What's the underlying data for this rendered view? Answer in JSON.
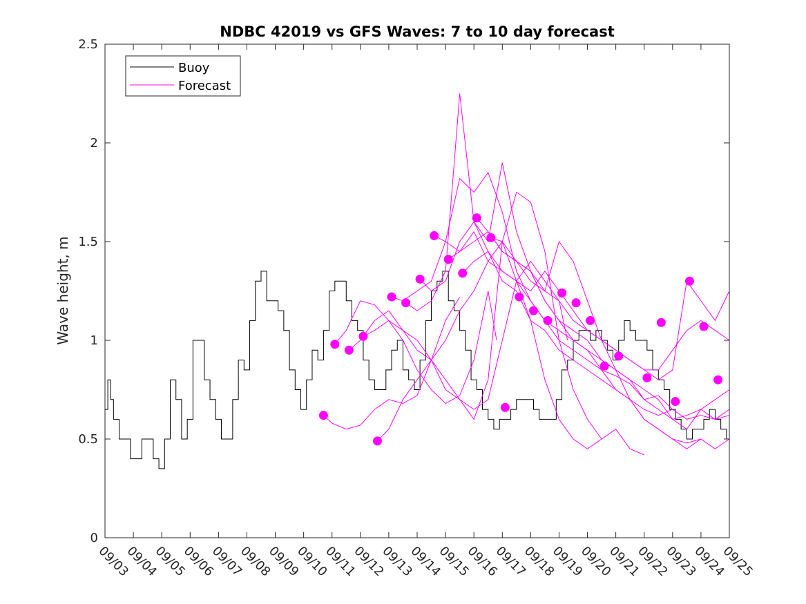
{
  "chart_data": {
    "type": "line",
    "title": "NDBC 42019 vs GFS Waves: 7 to 10 day forecast",
    "xlabel": "",
    "ylabel": "Wave height, m",
    "ylim": [
      0,
      2.5
    ],
    "yticks": [
      0,
      0.5,
      1,
      1.5,
      2,
      2.5
    ],
    "ytick_labels": [
      "0",
      "0.5",
      "1",
      "1.5",
      "2",
      "2.5"
    ],
    "xlim": [
      0,
      22
    ],
    "xticks": [
      0,
      1,
      2,
      3,
      4,
      5,
      6,
      7,
      8,
      9,
      10,
      11,
      12,
      13,
      14,
      15,
      16,
      17,
      18,
      19,
      20,
      21,
      22
    ],
    "xtick_labels": [
      "09/03",
      "09/04",
      "09/05",
      "09/06",
      "09/07",
      "09/08",
      "09/09",
      "09/10",
      "09/11",
      "09/12",
      "09/13",
      "09/14",
      "09/15",
      "09/16",
      "09/17",
      "09/18",
      "09/19",
      "09/20",
      "09/21",
      "09/22",
      "09/23",
      "09/24",
      "09/25"
    ],
    "x_unit": "days since 09/03",
    "legend": {
      "position": "top-left",
      "entries": [
        {
          "label": "Buoy",
          "color": "#000000"
        },
        {
          "label": "Forecast",
          "color": "#ff00ff"
        }
      ]
    },
    "colors": {
      "buoy": "#000000",
      "forecast": "#ff00ff"
    },
    "buoy": {
      "name": "Buoy",
      "x": [
        0,
        0.1,
        0.2,
        0.3,
        0.5,
        0.7,
        0.9,
        1.1,
        1.3,
        1.5,
        1.7,
        1.9,
        2.1,
        2.3,
        2.5,
        2.7,
        2.9,
        3.1,
        3.3,
        3.5,
        3.7,
        3.9,
        4.1,
        4.3,
        4.5,
        4.7,
        4.9,
        5.1,
        5.3,
        5.5,
        5.7,
        5.9,
        6.1,
        6.3,
        6.5,
        6.7,
        6.9,
        7.1,
        7.3,
        7.5,
        7.7,
        7.9,
        8.1,
        8.3,
        8.5,
        8.7,
        8.9,
        9.1,
        9.3,
        9.5,
        9.7,
        9.9,
        10.1,
        10.3,
        10.5,
        10.7,
        10.9,
        11.1,
        11.3,
        11.5,
        11.7,
        11.9,
        12.1,
        12.3,
        12.5,
        12.7,
        12.9,
        13.1,
        13.3,
        13.5,
        13.7,
        13.9,
        14.1,
        14.3,
        14.5,
        14.7,
        14.9,
        15.1,
        15.3,
        15.5,
        15.7,
        15.9,
        16.1,
        16.3,
        16.5,
        16.7,
        16.9,
        17.1,
        17.3,
        17.5,
        17.7,
        17.9,
        18.1,
        18.3,
        18.5,
        18.7,
        18.9,
        19.1,
        19.3,
        19.5,
        19.7,
        19.9,
        20.1,
        20.3,
        20.5,
        20.7,
        20.9,
        21.1,
        21.3,
        21.5,
        21.7,
        21.9,
        22.0
      ],
      "values": [
        0.65,
        0.8,
        0.7,
        0.6,
        0.5,
        0.5,
        0.4,
        0.4,
        0.5,
        0.5,
        0.4,
        0.35,
        0.5,
        0.8,
        0.7,
        0.5,
        0.6,
        1.0,
        1.0,
        0.8,
        0.7,
        0.6,
        0.5,
        0.5,
        0.7,
        0.9,
        0.85,
        1.1,
        1.3,
        1.35,
        1.2,
        1.2,
        1.15,
        1.05,
        0.85,
        0.75,
        0.65,
        0.8,
        0.95,
        0.9,
        1.05,
        1.25,
        1.3,
        1.3,
        1.2,
        1.1,
        1.05,
        0.9,
        0.8,
        0.75,
        0.75,
        0.85,
        0.95,
        1.0,
        0.85,
        0.8,
        0.75,
        0.9,
        1.1,
        1.25,
        1.3,
        1.35,
        1.2,
        1.15,
        1.05,
        0.95,
        0.8,
        0.75,
        0.65,
        0.6,
        0.55,
        0.6,
        0.6,
        0.65,
        0.7,
        0.7,
        0.7,
        0.65,
        0.6,
        0.6,
        0.6,
        0.7,
        0.85,
        0.9,
        1.0,
        1.05,
        1.05,
        1.0,
        1.05,
        1.0,
        0.95,
        0.9,
        1.0,
        1.1,
        1.05,
        1.0,
        1.0,
        0.95,
        0.85,
        0.8,
        0.75,
        0.65,
        0.6,
        0.55,
        0.5,
        0.55,
        0.55,
        0.6,
        0.65,
        0.6,
        0.55,
        0.5,
        0.5
      ]
    },
    "forecast_series": [
      {
        "x": [
          7.7,
          8.0,
          8.5,
          9.0,
          9.5,
          10.0,
          10.5,
          11.0,
          11.5,
          12.0,
          12.5
        ],
        "values": [
          0.62,
          0.58,
          0.55,
          0.57,
          0.65,
          0.7,
          0.68,
          0.72,
          0.9,
          1.1,
          1.22
        ]
      },
      {
        "x": [
          8.1,
          8.5,
          9.0,
          9.5,
          10.0,
          10.5,
          11.0,
          11.5,
          12.0,
          12.5,
          13.0,
          13.5,
          13.8
        ],
        "values": [
          0.98,
          1.05,
          1.2,
          1.18,
          1.1,
          1.0,
          0.85,
          0.75,
          0.68,
          0.72,
          0.9,
          1.25,
          1.0
        ]
      },
      {
        "x": [
          8.6,
          9.0,
          9.5,
          10.0,
          10.5,
          11.0,
          11.5,
          12.0,
          12.5,
          13.0,
          13.5,
          14.0,
          14.5,
          15.0,
          15.5,
          16.0,
          16.3
        ],
        "values": [
          0.95,
          1.0,
          1.1,
          1.15,
          1.05,
          0.95,
          0.9,
          0.8,
          0.7,
          0.65,
          0.7,
          1.0,
          1.3,
          1.4,
          1.3,
          1.2,
          1.0
        ]
      },
      {
        "x": [
          9.1,
          9.5,
          10.0,
          10.5,
          11.0,
          11.5,
          12.0,
          12.5,
          13.0,
          13.5,
          14.0,
          14.5,
          15.0,
          15.5,
          16.0,
          16.5,
          17.0,
          17.5
        ],
        "values": [
          1.02,
          1.05,
          1.1,
          1.05,
          1.0,
          0.9,
          0.75,
          0.7,
          0.6,
          0.8,
          1.5,
          1.75,
          1.7,
          1.45,
          1.0,
          0.75,
          0.6,
          0.5
        ]
      },
      {
        "x": [
          9.6,
          10.0,
          10.5,
          11.0,
          11.5,
          12.0,
          12.5,
          13.0,
          13.5,
          14.0,
          14.5,
          15.0,
          15.5,
          16.0,
          16.5,
          17.0,
          17.5,
          18.0,
          18.5,
          19.0
        ],
        "values": [
          0.49,
          0.55,
          0.7,
          0.8,
          0.9,
          1.0,
          1.15,
          1.25,
          1.4,
          1.5,
          1.3,
          1.1,
          0.8,
          0.6,
          0.5,
          0.45,
          0.5,
          0.55,
          0.45,
          0.42
        ]
      },
      {
        "x": [
          10.1,
          10.5,
          11.0,
          11.5,
          12.0,
          12.5,
          13.0,
          13.5,
          14.0,
          14.5,
          15.0,
          15.5,
          16.0,
          16.5,
          17.0,
          17.5,
          18.0,
          18.5,
          19.0,
          19.5,
          20.0
        ],
        "values": [
          1.22,
          1.2,
          1.25,
          1.3,
          1.5,
          1.82,
          1.75,
          1.85,
          1.65,
          1.35,
          1.2,
          1.1,
          1.0,
          0.95,
          0.9,
          0.85,
          0.82,
          0.78,
          0.7,
          0.72,
          0.65
        ]
      },
      {
        "x": [
          10.6,
          11.0,
          11.5,
          12.0,
          12.5,
          13.0,
          13.5,
          14.0,
          14.5,
          15.0,
          15.5,
          16.0,
          16.5,
          17.0,
          17.5,
          18.0,
          18.5,
          19.0,
          19.5,
          20.0,
          20.5,
          21.0
        ],
        "values": [
          1.19,
          1.15,
          1.2,
          1.35,
          2.25,
          1.6,
          1.45,
          1.3,
          1.25,
          1.1,
          1.05,
          0.95,
          0.9,
          0.85,
          0.8,
          0.75,
          0.7,
          0.6,
          0.55,
          0.5,
          0.48,
          0.5
        ]
      },
      {
        "x": [
          11.1,
          11.5,
          12.0,
          12.5,
          13.0,
          13.5,
          14.0,
          14.5,
          15.0,
          15.5,
          16.0,
          16.5,
          17.0,
          17.5,
          18.0,
          18.5,
          19.0,
          19.5,
          20.0,
          20.5,
          21.0,
          21.5,
          22.0
        ],
        "values": [
          1.31,
          1.25,
          1.3,
          1.5,
          1.6,
          1.5,
          1.9,
          1.55,
          1.35,
          1.2,
          1.1,
          1.0,
          0.95,
          0.85,
          0.75,
          0.7,
          0.6,
          0.55,
          0.5,
          0.45,
          0.5,
          0.45,
          0.5
        ]
      },
      {
        "x": [
          11.6,
          12.0,
          12.5,
          13.0,
          13.5,
          14.0,
          14.5,
          15.0,
          15.5,
          16.0,
          16.5,
          17.0,
          17.5,
          18.0,
          18.5,
          19.0,
          19.5,
          20.0,
          20.5,
          21.0,
          21.5,
          22.0
        ],
        "values": [
          1.53,
          1.5,
          1.45,
          1.55,
          1.4,
          1.35,
          1.3,
          1.2,
          1.1,
          1.05,
          1.0,
          0.95,
          0.9,
          0.85,
          0.8,
          0.7,
          0.65,
          0.6,
          0.62,
          0.65,
          0.7,
          0.75
        ]
      },
      {
        "x": [
          12.1,
          12.5,
          13.0,
          13.5,
          14.0,
          14.5,
          15.0,
          15.5,
          16.0,
          16.5,
          17.0,
          17.5,
          18.0,
          18.5,
          19.0,
          19.5,
          20.0,
          20.5,
          21.0,
          21.5,
          22.0
        ],
        "values": [
          1.41,
          1.45,
          1.5,
          1.55,
          1.45,
          1.4,
          1.35,
          1.25,
          1.5,
          1.4,
          1.2,
          1.0,
          0.85,
          0.7,
          0.65,
          0.62,
          0.65,
          0.6,
          0.62,
          0.6,
          0.65
        ]
      },
      {
        "x": [
          12.6,
          13.0,
          13.5,
          14.0,
          14.5,
          15.0,
          15.5,
          16.0,
          16.5,
          17.0,
          17.5,
          18.0,
          18.5,
          19.0,
          19.5,
          20.0,
          20.5,
          21.0,
          21.5,
          22.0
        ],
        "values": [
          1.34,
          1.4,
          1.45,
          1.35,
          1.3,
          1.25,
          1.35,
          1.25,
          1.15,
          1.05,
          1.0,
          0.95,
          0.9,
          0.85,
          0.8,
          0.85,
          1.3,
          1.2,
          1.1,
          1.25
        ]
      },
      {
        "x": [
          13.1,
          13.5,
          14.0,
          14.5,
          15.0,
          15.5,
          16.0,
          16.5,
          17.0,
          17.5,
          18.0,
          18.5,
          19.0,
          19.5,
          20.0,
          20.5,
          21.0,
          21.5,
          22.0
        ],
        "values": [
          1.62,
          1.55,
          1.45,
          1.4,
          1.35,
          1.2,
          1.1,
          1.05,
          1.0,
          0.9,
          0.85,
          0.8,
          0.75,
          0.7,
          0.6,
          0.55,
          0.65,
          0.6,
          0.62
        ]
      },
      {
        "x": [
          13.6,
          14.0,
          14.5,
          15.0,
          15.5,
          16.0,
          16.5,
          17.0,
          17.5,
          18.0,
          18.5,
          19.0,
          19.5,
          20.0,
          20.5,
          21.0,
          21.5,
          22.0
        ],
        "values": [
          1.52,
          1.5,
          1.4,
          1.3,
          1.25,
          1.2,
          1.1,
          1.05,
          1.0,
          0.95,
          0.9,
          0.85,
          0.85,
          0.95,
          1.05,
          1.1,
          1.05,
          1.0
        ]
      }
    ],
    "forecast_markers": [
      {
        "x": 7.7,
        "y": 0.62
      },
      {
        "x": 8.1,
        "y": 0.98
      },
      {
        "x": 8.6,
        "y": 0.95
      },
      {
        "x": 9.1,
        "y": 1.02
      },
      {
        "x": 9.6,
        "y": 0.49
      },
      {
        "x": 10.1,
        "y": 1.22
      },
      {
        "x": 10.6,
        "y": 1.19
      },
      {
        "x": 11.1,
        "y": 1.31
      },
      {
        "x": 11.6,
        "y": 1.53
      },
      {
        "x": 12.1,
        "y": 1.41
      },
      {
        "x": 12.6,
        "y": 1.34
      },
      {
        "x": 13.1,
        "y": 1.62
      },
      {
        "x": 13.6,
        "y": 1.52
      },
      {
        "x": 14.1,
        "y": 0.66
      },
      {
        "x": 14.6,
        "y": 1.22
      },
      {
        "x": 15.1,
        "y": 1.15
      },
      {
        "x": 15.6,
        "y": 1.1
      },
      {
        "x": 16.1,
        "y": 1.24
      },
      {
        "x": 16.6,
        "y": 1.19
      },
      {
        "x": 17.1,
        "y": 1.1
      },
      {
        "x": 17.6,
        "y": 0.87
      },
      {
        "x": 18.1,
        "y": 0.92
      },
      {
        "x": 19.1,
        "y": 0.81
      },
      {
        "x": 19.6,
        "y": 1.09
      },
      {
        "x": 20.1,
        "y": 0.69
      },
      {
        "x": 20.6,
        "y": 1.3
      },
      {
        "x": 21.1,
        "y": 1.07
      },
      {
        "x": 21.6,
        "y": 0.8
      }
    ]
  }
}
